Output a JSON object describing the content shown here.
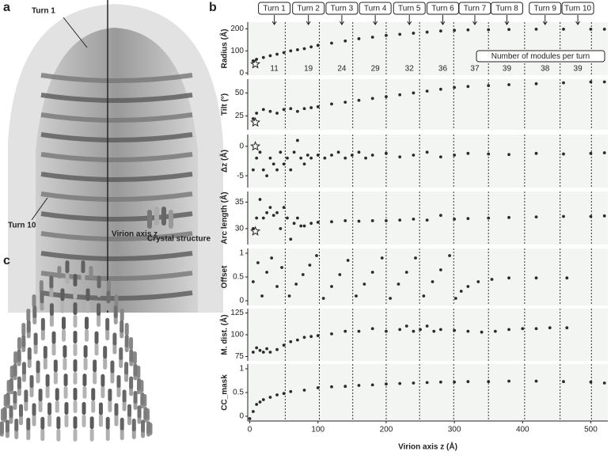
{
  "panel_a": {
    "label": "a",
    "turn_first": "Turn 1",
    "turn_last": "Turn 10",
    "axis": "Virion axis z"
  },
  "panel_c": {
    "label": "c",
    "annotation": "Crystal structure"
  },
  "chart_data": {
    "type": "scatter",
    "label": "b",
    "x_label": "Virion axis z (Å)",
    "xlim": [
      -3,
      525
    ],
    "xticks": [
      0,
      100,
      200,
      300,
      400,
      500
    ],
    "vlines": [
      52,
      102,
      151,
      200,
      249,
      299,
      350,
      403,
      455,
      501
    ],
    "turns": [
      {
        "label": "Turn 1",
        "z": 36,
        "modules": 11
      },
      {
        "label": "Turn 2",
        "z": 86,
        "modules": 19
      },
      {
        "label": "Turn 3",
        "z": 135,
        "modules": 24
      },
      {
        "label": "Turn 4",
        "z": 184,
        "modules": 29
      },
      {
        "label": "Turn 5",
        "z": 234,
        "modules": 32
      },
      {
        "label": "Turn 6",
        "z": 283,
        "modules": 36
      },
      {
        "label": "Turn 7",
        "z": 330,
        "modules": 37
      },
      {
        "label": "Turn 8",
        "z": 377,
        "modules": 39
      },
      {
        "label": "Turn 9",
        "z": 433,
        "modules": 38
      },
      {
        "label": "Turn 10",
        "z": 481,
        "modules": 39
      }
    ],
    "modules_note": "Number of modules per turn",
    "color": "#2b2b2b",
    "background": "#f3f5f2",
    "panels": [
      {
        "y_label": "Radius (Å)",
        "ylim": [
          -10,
          230
        ],
        "yticks": [
          0,
          100,
          200
        ],
        "star": {
          "x": 0,
          "y": 40
        },
        "x": [
          5,
          10,
          20,
          30,
          40,
          50,
          60,
          70,
          80,
          90,
          100,
          120,
          140,
          160,
          180,
          200,
          220,
          240,
          260,
          280,
          300,
          320,
          350,
          380,
          420,
          460,
          500,
          520
        ],
        "y": [
          55,
          62,
          70,
          78,
          85,
          92,
          100,
          105,
          110,
          118,
          125,
          135,
          145,
          155,
          162,
          170,
          175,
          180,
          185,
          190,
          193,
          195,
          196,
          197,
          198,
          198,
          198,
          198
        ]
      },
      {
        "y_label": "Tilt (°)",
        "ylim": [
          10,
          65
        ],
        "yticks": [
          25,
          50
        ],
        "star": {
          "x": 0,
          "y": 18
        },
        "x": [
          5,
          10,
          20,
          30,
          40,
          50,
          60,
          70,
          80,
          90,
          100,
          120,
          140,
          160,
          180,
          200,
          220,
          240,
          260,
          280,
          300,
          320,
          350,
          380,
          420,
          460,
          500,
          520
        ],
        "y": [
          22,
          28,
          32,
          30,
          28,
          32,
          33,
          30,
          33,
          34,
          35,
          38,
          40,
          42,
          44,
          46,
          48,
          50,
          52,
          54,
          56,
          57,
          58,
          59,
          60,
          61,
          62,
          62
        ]
      },
      {
        "y_label": "Δz (Å)",
        "ylim": [
          -7,
          2
        ],
        "yticks": [
          -5,
          0
        ],
        "star": {
          "x": 0,
          "y": 0
        },
        "x": [
          5,
          10,
          15,
          20,
          25,
          30,
          35,
          40,
          45,
          50,
          55,
          60,
          65,
          70,
          75,
          80,
          85,
          90,
          100,
          110,
          120,
          130,
          140,
          150,
          160,
          170,
          180,
          200,
          220,
          240,
          260,
          280,
          300,
          320,
          350,
          380,
          420,
          460,
          500,
          520
        ],
        "y": [
          -4,
          -2,
          -1,
          -4,
          -5,
          -2,
          -3,
          -4,
          -1,
          -3,
          -2,
          -4,
          -1,
          1,
          -2,
          -3,
          -1.5,
          -2,
          -1.5,
          -2,
          -1.5,
          -1,
          -2,
          -1.5,
          -1,
          -2,
          -1.5,
          -1.2,
          -1.8,
          -1.5,
          -1,
          -1.8,
          -1.5,
          -1.2,
          -1.3,
          -1.4,
          -1.2,
          -1.3,
          -1.2,
          -1.1
        ]
      },
      {
        "y_label": "Arc length (Å)",
        "ylim": [
          27,
          37
        ],
        "yticks": [
          30,
          35
        ],
        "star": {
          "x": 0,
          "y": 29.5
        },
        "x": [
          5,
          10,
          15,
          20,
          25,
          30,
          35,
          40,
          45,
          50,
          55,
          60,
          65,
          70,
          75,
          80,
          90,
          100,
          120,
          140,
          160,
          180,
          200,
          220,
          240,
          260,
          280,
          300,
          320,
          350,
          380,
          420,
          460,
          500,
          520
        ],
        "y": [
          30,
          32,
          35.5,
          32,
          33,
          34,
          32.5,
          33,
          30,
          34,
          32,
          28,
          31,
          32,
          30.5,
          30.5,
          31,
          31.2,
          31.3,
          31.5,
          31.4,
          31.5,
          31.5,
          31.6,
          31.8,
          31.6,
          32.5,
          31.8,
          31.9,
          32,
          32.1,
          32.2,
          32.3,
          32.3,
          32.4
        ]
      },
      {
        "y_label": "Offset",
        "ylim": [
          -0.1,
          1.1
        ],
        "yticks": [
          0,
          0.5,
          1
        ],
        "x": [
          5,
          12,
          18,
          25,
          32,
          40,
          47,
          58,
          68,
          78,
          88,
          98,
          108,
          120,
          132,
          144,
          156,
          168,
          180,
          194,
          206,
          218,
          230,
          243,
          255,
          268,
          280,
          293,
          302,
          310,
          320,
          335,
          355,
          380,
          420,
          465
        ],
        "y": [
          0.4,
          0.8,
          0.1,
          0.6,
          0.9,
          0.3,
          0.7,
          0.1,
          0.35,
          0.55,
          0.75,
          0.95,
          0.05,
          0.3,
          0.55,
          0.85,
          0.1,
          0.35,
          0.6,
          0.9,
          0.05,
          0.35,
          0.6,
          0.9,
          0.1,
          0.4,
          0.65,
          0.95,
          0.05,
          0.2,
          0.3,
          0.4,
          0.45,
          0.48,
          0.48,
          0.48
        ]
      },
      {
        "y_label": "M. dist. (Å)",
        "ylim": [
          70,
          130
        ],
        "yticks": [
          75,
          100,
          125
        ],
        "x": [
          5,
          10,
          15,
          20,
          25,
          30,
          40,
          50,
          60,
          70,
          80,
          90,
          100,
          120,
          140,
          160,
          180,
          200,
          220,
          230,
          240,
          250,
          260,
          270,
          280,
          300,
          320,
          340,
          360,
          380,
          400,
          420,
          440,
          465
        ],
        "y": [
          80,
          85,
          82,
          80,
          84,
          80,
          83,
          88,
          92,
          94,
          97,
          98,
          99,
          101,
          104,
          104,
          107,
          104,
          106,
          110,
          104,
          106,
          110,
          104,
          106,
          105,
          104,
          103,
          104,
          106,
          107,
          107,
          108,
          108
        ]
      },
      {
        "y_label": "CC_mask",
        "ylim": [
          -0.1,
          1.1
        ],
        "yticks": [
          0,
          0.5,
          1
        ],
        "x": [
          0,
          5,
          10,
          15,
          20,
          30,
          40,
          50,
          60,
          80,
          100,
          120,
          140,
          160,
          180,
          200,
          220,
          240,
          260,
          280,
          300,
          320,
          350,
          380,
          420,
          460,
          500,
          520
        ],
        "y": [
          -0.05,
          0.1,
          0.25,
          0.3,
          0.35,
          0.4,
          0.45,
          0.48,
          0.52,
          0.55,
          0.6,
          0.62,
          0.63,
          0.65,
          0.66,
          0.68,
          0.69,
          0.7,
          0.71,
          0.72,
          0.72,
          0.73,
          0.73,
          0.74,
          0.74,
          0.73,
          0.72,
          0.7
        ]
      }
    ]
  }
}
